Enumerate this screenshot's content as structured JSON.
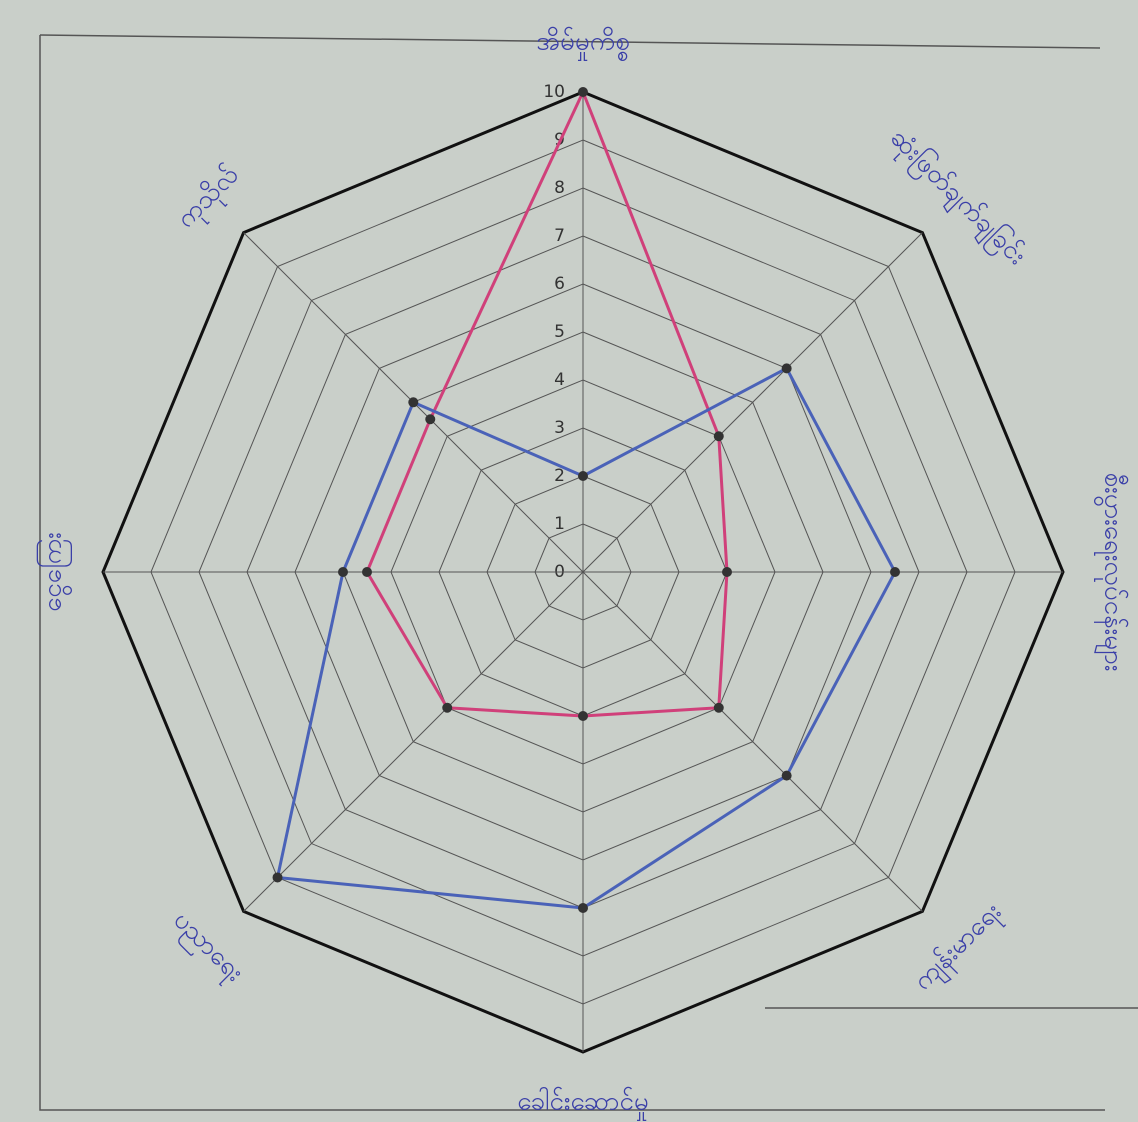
{
  "chart_data": {
    "type": "radar",
    "categories": [
      "အိမ်မှုကိစ္စ",
      "ဆုံးဖြတ်ချက်ချခြင်း",
      "စီးပွားရေးလုပ်ငန်းများ",
      "ကျန်းမာရေး",
      "ခေါင်းဆောင်မှု",
      "ပညာရေး",
      "ငွေကြေး",
      "ကုသိုလ်"
    ],
    "rlim": [
      0,
      10
    ],
    "rticks": [
      0,
      1,
      2,
      3,
      4,
      5,
      6,
      7,
      8,
      9,
      10
    ],
    "series": [
      {
        "color": "#d0407a",
        "values": [
          10,
          4,
          3,
          4,
          3,
          4,
          4.5,
          4.5
        ]
      },
      {
        "color": "#4a62b8",
        "values": [
          2,
          6,
          6.5,
          6,
          7,
          9,
          5,
          5
        ]
      }
    ]
  }
}
